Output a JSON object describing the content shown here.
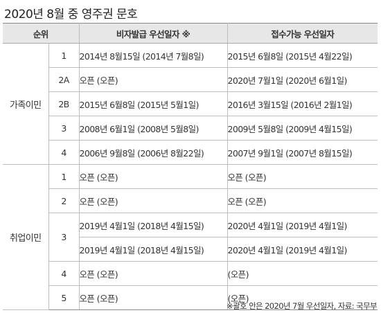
{
  "title": "2020년 8월 중 영주권 문호",
  "headers": {
    "rank": "순위",
    "visa": "비자발급 우선일자 ※",
    "filing": "접수가능 우선일자"
  },
  "family": {
    "category": "가족이민",
    "rows": [
      {
        "rank": "1",
        "visa": "2014년 8월15일 (2014년 7월8일)",
        "filing": "2015년 6월8일 (2015년 4월22일)"
      },
      {
        "rank": "2A",
        "visa": "오픈 (오픈)",
        "filing": "2020년 7월1일 (2020년 6월1일)"
      },
      {
        "rank": "2B",
        "visa": "2015년 6월8일 (2015년 5월1일)",
        "filing": "2016년 3월15일 (2016년 2월1일)"
      },
      {
        "rank": "3",
        "visa": "2008년 6월1일 (2008년 5월8일)",
        "filing": "2009년 5월8일 (2009년 4월15일)"
      },
      {
        "rank": "4",
        "visa": "2006년 9월8일 (2006년 8월22일)",
        "filing": "2007년 9월1일 (2007년 8월15일)"
      }
    ]
  },
  "employment": {
    "category": "취업이민",
    "rows": [
      {
        "rank": "1",
        "visa": "오픈 (오픈)",
        "filing": "오픈 (오픈)"
      },
      {
        "rank": "2",
        "visa": "오픈 (오픈)",
        "filing": "오픈 (오픈)"
      },
      {
        "rank": "3",
        "visa": "2019년 4월1일 (2018년 4월15일)",
        "filing": "2020년 4월1일 (2019년 4월1일)"
      },
      {
        "rank": "",
        "visa": "2019년 4월1일 (2018년 4월15일)",
        "filing": "2020년 4월1일 (2019년 4월1일)"
      },
      {
        "rank": "4",
        "visa": "오픈 (오픈)",
        "filing": "(오픈)"
      },
      {
        "rank": "5",
        "visa": "오픈 (오픈)",
        "filing": "(오픈)"
      }
    ]
  },
  "footnote": "※괄호 안은 2020년 7월 우선일자, 자료: 국무부"
}
